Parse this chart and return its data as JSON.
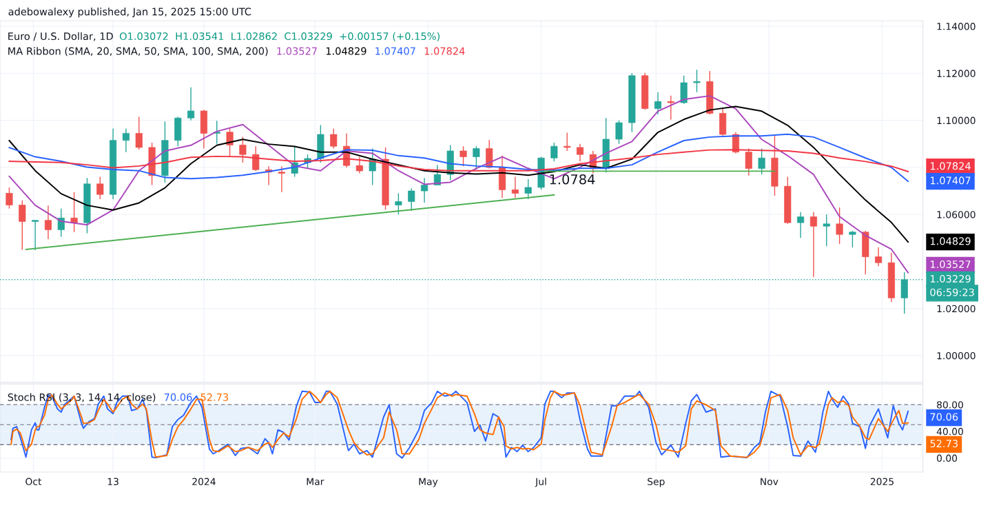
{
  "chart_data": [
    {
      "type": "candlestick",
      "title": "Euro / U.S. Dollar, 1D",
      "annotations": [
        "adebowalexy published, Jan 15, 2025 15:00 UTC",
        "O1.03072  H1.03541  L1.02862  C1.03229  +0.00157 (+0.15%)",
        "MA Ribbon (SMA, 20, SMA, 50, SMA, 100, SMA, 200)",
        "06:59:23",
        {
          "text": "1.0784",
          "x": "2024-07-03",
          "y": 1.0784
        },
        {
          "text": "1.03527",
          "x": "2025-01-15",
          "y": 1.03527
        },
        {
          "text": "1.04829",
          "x": "2025-01-15",
          "y": 1.04829
        },
        {
          "text": "1.07407",
          "x": "2025-01-15",
          "y": 1.07407
        },
        {
          "text": "1.07824",
          "x": "2025-01-15",
          "y": 1.07824
        }
      ],
      "x": [
        "2023-09-18",
        "2023-09-25",
        "2023-10-02",
        "2023-10-09",
        "2023-10-16",
        "2023-10-23",
        "2023-10-30",
        "2023-11-06",
        "2023-11-13",
        "2023-11-20",
        "2023-11-27",
        "2023-12-04",
        "2023-12-11",
        "2023-12-18",
        "2023-12-25",
        "2024-01-01",
        "2024-01-08",
        "2024-01-15",
        "2024-01-22",
        "2024-01-29",
        "2024-02-05",
        "2024-02-12",
        "2024-02-19",
        "2024-02-26",
        "2024-03-04",
        "2024-03-11",
        "2024-03-18",
        "2024-03-25",
        "2024-04-01",
        "2024-04-08",
        "2024-04-15",
        "2024-04-22",
        "2024-04-29",
        "2024-05-06",
        "2024-05-13",
        "2024-05-20",
        "2024-05-27",
        "2024-06-03",
        "2024-06-10",
        "2024-06-17",
        "2024-06-24",
        "2024-07-01",
        "2024-07-08",
        "2024-07-15",
        "2024-07-22",
        "2024-07-29",
        "2024-08-05",
        "2024-08-12",
        "2024-08-19",
        "2024-08-26",
        "2024-09-02",
        "2024-09-09",
        "2024-09-16",
        "2024-09-23",
        "2024-09-30",
        "2024-10-07",
        "2024-10-14",
        "2024-10-21",
        "2024-10-28",
        "2024-11-04",
        "2024-11-11",
        "2024-11-18",
        "2024-11-25",
        "2024-12-02",
        "2024-12-09",
        "2024-12-16",
        "2024-12-23",
        "2024-12-30",
        "2025-01-06",
        "2025-01-13"
      ],
      "ohlc": [
        [
          1.069,
          1.0715,
          1.0625,
          1.064
        ],
        [
          1.064,
          1.066,
          1.045,
          1.057
        ],
        [
          1.057,
          1.0575,
          1.0448,
          1.0575
        ],
        [
          1.0575,
          1.0638,
          1.0495,
          1.0535
        ],
        [
          1.0535,
          1.0625,
          1.0505,
          1.0585
        ],
        [
          1.0585,
          1.0695,
          1.0525,
          1.0565
        ],
        [
          1.0565,
          1.0755,
          1.052,
          1.073
        ],
        [
          1.073,
          1.076,
          1.0665,
          1.0685
        ],
        [
          1.0685,
          1.0965,
          1.0665,
          1.0915
        ],
        [
          1.0915,
          1.0965,
          1.0865,
          1.0945
        ],
        [
          1.0945,
          1.1015,
          1.0875,
          1.0885
        ],
        [
          1.0885,
          1.0905,
          1.0725,
          1.0765
        ],
        [
          1.0765,
          1.0995,
          1.0735,
          1.0915
        ],
        [
          1.0915,
          1.1015,
          1.089,
          1.101
        ],
        [
          1.101,
          1.114,
          1.1,
          1.104
        ],
        [
          1.104,
          1.1045,
          1.088,
          1.0945
        ],
        [
          1.0945,
          1.0998,
          1.09,
          1.095
        ],
        [
          1.095,
          1.0965,
          1.0845,
          1.0895
        ],
        [
          1.0895,
          1.093,
          1.082,
          1.0855
        ],
        [
          1.0855,
          1.089,
          1.0785,
          1.079
        ],
        [
          1.079,
          1.0805,
          1.0725,
          1.078
        ],
        [
          1.078,
          1.0805,
          1.0695,
          1.0775
        ],
        [
          1.0775,
          1.0888,
          1.076,
          1.082
        ],
        [
          1.082,
          1.0855,
          1.0795,
          1.0838
        ],
        [
          1.0838,
          1.098,
          1.082,
          1.094
        ],
        [
          1.094,
          1.0965,
          1.088,
          1.089
        ],
        [
          1.089,
          1.0945,
          1.08,
          1.0808
        ],
        [
          1.0808,
          1.0845,
          1.0775,
          1.0785
        ],
        [
          1.0785,
          1.088,
          1.0725,
          1.0835
        ],
        [
          1.0835,
          1.0885,
          1.062,
          1.064
        ],
        [
          1.064,
          1.069,
          1.06,
          1.0655
        ],
        [
          1.0655,
          1.0711,
          1.0615,
          1.07
        ],
        [
          1.07,
          1.0755,
          1.065,
          1.0725
        ],
        [
          1.0725,
          1.081,
          1.0725,
          1.077
        ],
        [
          1.077,
          1.0895,
          1.0745,
          1.087
        ],
        [
          1.087,
          1.089,
          1.0805,
          1.0845
        ],
        [
          1.0845,
          1.089,
          1.079,
          1.088
        ],
        [
          1.088,
          1.0917,
          1.0795,
          1.08
        ],
        [
          1.08,
          1.085,
          1.067,
          1.0705
        ],
        [
          1.0705,
          1.076,
          1.067,
          1.069
        ],
        [
          1.069,
          1.075,
          1.0665,
          1.0715
        ],
        [
          1.0715,
          1.0845,
          1.0705,
          1.084
        ],
        [
          1.084,
          1.0905,
          1.0825,
          1.089
        ],
        [
          1.089,
          1.0948,
          1.087,
          1.0885
        ],
        [
          1.0885,
          1.09,
          1.0825,
          1.0855
        ],
        [
          1.0855,
          1.087,
          1.0775,
          1.0795
        ],
        [
          1.0795,
          1.101,
          1.0778,
          1.092
        ],
        [
          1.092,
          1.1,
          1.09,
          1.099
        ],
        [
          1.099,
          1.12,
          1.095,
          1.119
        ],
        [
          1.119,
          1.1202,
          1.1045,
          1.105
        ],
        [
          1.105,
          1.112,
          1.1025,
          1.108
        ],
        [
          1.108,
          1.1105,
          1.1003,
          1.1075
        ],
        [
          1.1075,
          1.119,
          1.107,
          1.116
        ],
        [
          1.116,
          1.1215,
          1.112,
          1.1165
        ],
        [
          1.1165,
          1.121,
          1.1025,
          1.103
        ],
        [
          1.103,
          1.105,
          1.0935,
          1.094
        ],
        [
          1.094,
          1.095,
          1.086,
          1.0865
        ],
        [
          1.0865,
          1.088,
          1.0765,
          1.0795
        ],
        [
          1.0795,
          1.088,
          1.077,
          1.084
        ],
        [
          1.084,
          1.0937,
          1.068,
          1.072
        ],
        [
          1.072,
          1.076,
          1.056,
          1.0565
        ],
        [
          1.0565,
          1.061,
          1.05,
          1.059
        ],
        [
          1.059,
          1.061,
          1.0335,
          1.055
        ],
        [
          1.055,
          1.06,
          1.0465,
          1.056
        ],
        [
          1.056,
          1.063,
          1.0475,
          1.0515
        ],
        [
          1.0515,
          1.053,
          1.046,
          1.0525
        ],
        [
          1.0525,
          1.053,
          1.0345,
          1.042
        ],
        [
          1.042,
          1.046,
          1.038,
          1.0395
        ],
        [
          1.0395,
          1.0437,
          1.0228,
          1.0245
        ],
        [
          1.0245,
          1.03541,
          1.0178,
          1.03229
        ]
      ],
      "colors": [
        "#ef5350",
        "#ef5350",
        "#26a69a",
        "#ef5350",
        "#26a69a",
        "#ef5350",
        "#26a69a",
        "#ef5350",
        "#26a69a",
        "#26a69a",
        "#ef5350",
        "#ef5350",
        "#26a69a",
        "#26a69a",
        "#26a69a",
        "#ef5350",
        "#26a69a",
        "#ef5350",
        "#ef5350",
        "#ef5350",
        "#ef5350",
        "#ef5350",
        "#26a69a",
        "#26a69a",
        "#26a69a",
        "#ef5350",
        "#ef5350",
        "#ef5350",
        "#26a69a",
        "#ef5350",
        "#26a69a",
        "#26a69a",
        "#26a69a",
        "#26a69a",
        "#26a69a",
        "#ef5350",
        "#26a69a",
        "#ef5350",
        "#ef5350",
        "#ef5350",
        "#26a69a",
        "#26a69a",
        "#26a69a",
        "#ef5350",
        "#ef5350",
        "#ef5350",
        "#26a69a",
        "#26a69a",
        "#26a69a",
        "#ef5350",
        "#26a69a",
        "#ef5350",
        "#26a69a",
        "#26a69a",
        "#ef5350",
        "#ef5350",
        "#ef5350",
        "#ef5350",
        "#26a69a",
        "#ef5350",
        "#ef5350",
        "#26a69a",
        "#ef5350",
        "#26a69a",
        "#ef5350",
        "#26a69a",
        "#ef5350",
        "#ef5350",
        "#ef5350",
        "#26a69a"
      ],
      "series": [
        {
          "type": "line",
          "color": "#ab47bc",
          "x": [
            "2023-09-18",
            "2023-10-02",
            "2023-10-16",
            "2023-10-30",
            "2023-11-13",
            "2023-11-27",
            "2023-12-11",
            "2023-12-25",
            "2024-01-08",
            "2024-01-22",
            "2024-02-05",
            "2024-02-19",
            "2024-03-04",
            "2024-03-18",
            "2024-04-01",
            "2024-04-15",
            "2024-04-29",
            "2024-05-13",
            "2024-05-27",
            "2024-06-10",
            "2024-06-24",
            "2024-07-08",
            "2024-07-22",
            "2024-08-05",
            "2024-08-19",
            "2024-09-02",
            "2024-09-16",
            "2024-09-30",
            "2024-10-14",
            "2024-10-28",
            "2024-11-11",
            "2024-11-25",
            "2024-12-09",
            "2024-12-23",
            "2025-01-06",
            "2025-01-15"
          ],
          "values": [
            1.0762,
            1.0639,
            1.0571,
            1.0556,
            1.0619,
            1.0786,
            1.087,
            1.0894,
            1.0953,
            1.0982,
            1.0894,
            1.0806,
            1.0786,
            1.087,
            1.086,
            1.0786,
            1.0728,
            1.0737,
            1.0796,
            1.0845,
            1.0796,
            1.0752,
            1.0801,
            1.086,
            1.091,
            1.1039,
            1.1089,
            1.1104,
            1.1049,
            1.0919,
            1.085,
            1.077,
            1.0591,
            1.0511,
            1.0452,
            1.03527
          ]
        },
        {
          "type": "line",
          "color": "#000000",
          "x": [
            "2023-09-18",
            "2023-10-02",
            "2023-10-16",
            "2023-10-30",
            "2023-11-13",
            "2023-11-27",
            "2023-12-11",
            "2023-12-25",
            "2024-01-08",
            "2024-01-22",
            "2024-02-05",
            "2024-02-19",
            "2024-03-04",
            "2024-03-18",
            "2024-04-01",
            "2024-04-15",
            "2024-04-29",
            "2024-05-13",
            "2024-05-27",
            "2024-06-10",
            "2024-06-24",
            "2024-07-08",
            "2024-07-22",
            "2024-08-05",
            "2024-08-19",
            "2024-09-02",
            "2024-09-16",
            "2024-09-30",
            "2024-10-14",
            "2024-10-28",
            "2024-11-11",
            "2024-11-25",
            "2024-12-09",
            "2024-12-23",
            "2025-01-06",
            "2025-01-15"
          ],
          "values": [
            1.0914,
            1.0786,
            1.0688,
            1.0639,
            1.0619,
            1.0649,
            1.0713,
            1.0816,
            1.0894,
            1.0919,
            1.0899,
            1.0889,
            1.0865,
            1.0865,
            1.0835,
            1.0811,
            1.0786,
            1.0777,
            1.0772,
            1.0777,
            1.0767,
            1.0782,
            1.0811,
            1.0796,
            1.0835,
            1.0949,
            1.1004,
            1.1044,
            1.1059,
            1.1039,
            1.0979,
            1.0885,
            1.077,
            1.0661,
            1.0566,
            1.04829
          ]
        },
        {
          "type": "line",
          "color": "#2962ff",
          "x": [
            "2023-09-18",
            "2023-10-02",
            "2023-10-16",
            "2023-10-30",
            "2023-11-13",
            "2023-11-27",
            "2023-12-11",
            "2023-12-25",
            "2024-01-08",
            "2024-01-22",
            "2024-02-05",
            "2024-02-19",
            "2024-03-04",
            "2024-03-18",
            "2024-04-01",
            "2024-04-15",
            "2024-04-29",
            "2024-05-13",
            "2024-05-27",
            "2024-06-10",
            "2024-06-24",
            "2024-07-08",
            "2024-07-22",
            "2024-08-05",
            "2024-08-19",
            "2024-09-02",
            "2024-09-16",
            "2024-09-30",
            "2024-10-14",
            "2024-10-28",
            "2024-11-11",
            "2024-11-25",
            "2024-12-09",
            "2024-12-23",
            "2025-01-06",
            "2025-01-15"
          ],
          "values": [
            1.0884,
            1.0845,
            1.0826,
            1.0801,
            1.0791,
            1.0786,
            1.0757,
            1.0752,
            1.0757,
            1.0767,
            1.0782,
            1.0801,
            1.084,
            1.0875,
            1.0873,
            1.085,
            1.084,
            1.0816,
            1.0806,
            1.0801,
            1.0791,
            1.0788,
            1.0796,
            1.0796,
            1.0811,
            1.0865,
            1.0914,
            1.0929,
            1.0934,
            1.0934,
            1.0941,
            1.0929,
            1.0885,
            1.084,
            1.08,
            1.07407
          ]
        },
        {
          "type": "line",
          "color": "#f23645",
          "x": [
            "2023-09-18",
            "2023-10-02",
            "2023-10-16",
            "2023-10-30",
            "2023-11-13",
            "2023-11-27",
            "2023-12-11",
            "2023-12-25",
            "2024-01-08",
            "2024-01-22",
            "2024-02-05",
            "2024-02-19",
            "2024-03-04",
            "2024-03-18",
            "2024-04-01",
            "2024-04-15",
            "2024-04-29",
            "2024-05-13",
            "2024-05-27",
            "2024-06-10",
            "2024-06-24",
            "2024-07-08",
            "2024-07-22",
            "2024-08-05",
            "2024-08-19",
            "2024-09-02",
            "2024-09-16",
            "2024-09-30",
            "2024-10-14",
            "2024-10-28",
            "2024-11-11",
            "2024-11-25",
            "2024-12-09",
            "2024-12-23",
            "2025-01-06",
            "2025-01-15"
          ],
          "values": [
            1.0826,
            1.0823,
            1.0821,
            1.0811,
            1.0798,
            1.0806,
            1.0821,
            1.0843,
            1.0847,
            1.0845,
            1.0835,
            1.0826,
            1.0829,
            1.0837,
            1.0826,
            1.0806,
            1.0791,
            1.0786,
            1.0786,
            1.0786,
            1.0786,
            1.0794,
            1.0816,
            1.0828,
            1.084,
            1.0855,
            1.0865,
            1.0874,
            1.0875,
            1.0872,
            1.087,
            1.086,
            1.084,
            1.0825,
            1.0805,
            1.07824
          ]
        },
        {
          "type": "line",
          "color": "#4caf50",
          "x": [
            "2023-09-27",
            "2024-07-08"
          ],
          "values": [
            1.0451,
            1.0683
          ]
        },
        {
          "type": "line",
          "color": "#4caf50",
          "x": [
            "2024-07-03",
            "2024-11-04"
          ],
          "values": [
            1.0784,
            1.0784
          ]
        }
      ],
      "ref_lines": [
        {
          "axis": "y",
          "value": 1.03229,
          "label": "1.03229",
          "color": "#26a69a",
          "line_style": "dotted"
        }
      ],
      "xlim": [
        "2023-09-13",
        "2025-01-23"
      ],
      "ylim": [
        0.9886,
        1.1423
      ],
      "xticks": [
        {
          "value": "2023-10-01",
          "label": null
        },
        {
          "value": "2023-11-13",
          "label": null
        },
        {
          "value": "2024-01-01",
          "label": null
        },
        {
          "value": "2024-03-01",
          "label": null
        },
        {
          "value": "2024-05-01",
          "label": null
        },
        {
          "value": "2024-07-01",
          "label": null
        },
        {
          "value": "2024-09-01",
          "label": null
        },
        {
          "value": "2024-11-01",
          "label": null
        },
        {
          "value": "2025-01-01",
          "label": null
        }
      ],
      "yticks": [
        {
          "value": 1.0,
          "label": "1.00000"
        },
        {
          "value": 1.02,
          "label": "1.02000"
        },
        {
          "value": 1.06,
          "label": "1.06000"
        },
        {
          "value": 1.08,
          "label": null
        },
        {
          "value": 1.1,
          "label": "1.10000"
        },
        {
          "value": 1.12,
          "label": "1.12000"
        },
        {
          "value": 1.14,
          "label": "1.14000"
        }
      ],
      "tick_labels": "y",
      "grid": true
    },
    {
      "type": "line",
      "title": "Stoch RSI (3, 3, 14, 14, close)",
      "annotations": [
        {
          "text": "70.06",
          "x": "2025-01-15",
          "y": 70.06
        },
        {
          "text": "52.73",
          "x": "2025-01-15",
          "y": 52.73
        }
      ],
      "x": [
        "2023-09-19",
        "2023-09-20",
        "2023-09-22",
        "2023-09-24",
        "2023-09-27",
        "2023-09-30",
        "2023-10-02",
        "2023-10-03",
        "2023-10-04",
        "2023-10-07",
        "2023-10-09",
        "2023-10-11",
        "2023-10-14",
        "2023-10-16",
        "2023-10-18",
        "2023-10-22",
        "2023-10-23",
        "2023-10-27",
        "2023-10-28",
        "2023-10-31",
        "2023-11-03",
        "2023-11-05",
        "2023-11-08",
        "2023-11-10",
        "2023-11-13",
        "2023-11-15",
        "2023-11-18",
        "2023-11-21",
        "2023-11-23",
        "2023-11-26",
        "2023-11-29",
        "2023-12-01",
        "2023-12-04",
        "2023-12-06",
        "2023-12-12",
        "2023-12-15",
        "2023-12-18",
        "2023-12-21",
        "2023-12-25",
        "2023-12-28",
        "2023-12-31",
        "2024-01-04",
        "2024-01-06",
        "2024-01-09",
        "2024-01-14",
        "2024-01-18",
        "2024-01-21",
        "2024-01-25",
        "2024-01-30",
        "2024-02-03",
        "2024-02-05",
        "2024-02-07",
        "2024-02-10",
        "2024-02-13",
        "2024-02-16",
        "2024-02-20",
        "2024-02-23",
        "2024-02-27",
        "2024-03-01",
        "2024-03-04",
        "2024-03-07",
        "2024-03-09",
        "2024-03-13",
        "2024-03-19",
        "2024-03-22",
        "2024-03-25",
        "2024-03-29",
        "2024-04-01",
        "2024-04-07",
        "2024-04-10",
        "2024-04-14",
        "2024-04-17",
        "2024-04-21",
        "2024-04-26",
        "2024-04-29",
        "2024-05-03",
        "2024-05-06",
        "2024-05-10",
        "2024-05-14",
        "2024-05-16",
        "2024-05-22",
        "2024-05-26",
        "2024-05-29",
        "2024-06-01",
        "2024-06-05",
        "2024-06-08",
        "2024-06-11",
        "2024-06-12",
        "2024-06-15",
        "2024-06-18",
        "2024-06-21",
        "2024-06-24",
        "2024-06-27",
        "2024-07-01",
        "2024-07-03",
        "2024-07-06",
        "2024-07-08",
        "2024-07-12",
        "2024-07-15",
        "2024-07-19",
        "2024-07-22",
        "2024-07-26",
        "2024-07-28",
        "2024-08-03",
        "2024-08-08",
        "2024-08-11",
        "2024-08-15",
        "2024-08-21",
        "2024-08-23",
        "2024-08-28",
        "2024-09-01",
        "2024-09-04",
        "2024-09-09",
        "2024-09-13",
        "2024-09-17",
        "2024-09-20",
        "2024-09-23",
        "2024-09-28",
        "2024-10-03",
        "2024-10-06",
        "2024-10-11",
        "2024-10-20",
        "2024-10-24",
        "2024-10-27",
        "2024-10-30",
        "2024-11-02",
        "2024-11-07",
        "2024-11-11",
        "2024-11-14",
        "2024-11-18",
        "2024-11-22",
        "2024-11-26",
        "2024-11-28",
        "2024-11-30",
        "2024-12-03",
        "2024-12-05",
        "2024-12-08",
        "2024-12-11",
        "2024-12-14",
        "2024-12-16",
        "2024-12-20",
        "2024-12-23",
        "2024-12-25",
        "2024-12-30",
        "2025-01-04",
        "2025-01-07",
        "2025-01-10",
        "2025-01-12",
        "2025-01-15"
      ],
      "series": [
        {
          "color": "#2962ff",
          "values": [
            27.9,
            44.7,
            47.1,
            30.3,
            1.4,
            42.3,
            52.9,
            42.3,
            42.3,
            76,
            94.3,
            92.8,
            73.6,
            68.8,
            80.8,
            90.4,
            92.8,
            51.9,
            44.7,
            54.4,
            59.2,
            80.8,
            92.8,
            73.6,
            66.4,
            83.2,
            92.8,
            92.8,
            71.2,
            73.6,
            88,
            71.2,
            1.4,
            0.5,
            4.8,
            47.1,
            57.7,
            64,
            83.2,
            92.8,
            76,
            13.5,
            6.3,
            11.1,
            20.7,
            3.8,
            14.4,
            15.9,
            6.3,
            28.9,
            23.1,
            6.3,
            42.3,
            38.5,
            26.9,
            78.4,
            100,
            99,
            83.2,
            83.2,
            100,
            100,
            80.8,
            11.1,
            20.7,
            6.3,
            11.1,
            1.4,
            61.6,
            79.8,
            6.3,
            0,
            15.9,
            42.3,
            71.2,
            83.2,
            100,
            92.8,
            95.2,
            100,
            83.2,
            39.9,
            49.5,
            25.5,
            66.4,
            61.6,
            25.5,
            1.4,
            15.9,
            9.6,
            19.2,
            9.6,
            15.9,
            30.3,
            80.8,
            100,
            100,
            90.4,
            97.6,
            97.6,
            56.8,
            13.5,
            2.9,
            2.9,
            78.4,
            78.4,
            92.8,
            92.8,
            100,
            76,
            23.1,
            4.8,
            19.2,
            1.4,
            51.9,
            85.6,
            95.2,
            68.8,
            73.6,
            1.4,
            2.9,
            0.5,
            15.9,
            23.1,
            68.8,
            100,
            92.8,
            47.1,
            3.8,
            2.9,
            25.5,
            8.7,
            35.1,
            68.8,
            100,
            88,
            76,
            92.8,
            80.8,
            51.9,
            47.1,
            14.4,
            47.1,
            73.6,
            30.3,
            78.4,
            51.9,
            42.3,
            70.06
          ]
        },
        {
          "color": "#ff6d00",
          "values": [
            20.7,
            40,
            43.3,
            37.5,
            11,
            20.7,
            42.3,
            47,
            47,
            64,
            88,
            94.3,
            80.8,
            73.6,
            78.4,
            88,
            92.8,
            61.6,
            51.9,
            52.9,
            57.7,
            71.2,
            88,
            80.8,
            68.8,
            76,
            88,
            92.8,
            80.8,
            73.6,
            80.8,
            73.6,
            25.5,
            1.4,
            3.8,
            27.9,
            47.1,
            56.8,
            73.6,
            88,
            88,
            27.9,
            11.1,
            9.6,
            18.3,
            9.6,
            11.1,
            15.9,
            11.1,
            20.7,
            23.1,
            15.9,
            27.9,
            37.5,
            31.7,
            59.2,
            88,
            100,
            92.8,
            83.2,
            95.2,
            100,
            90.4,
            42.3,
            23.1,
            13.5,
            4.8,
            6.3,
            30.3,
            68.8,
            42.3,
            6.3,
            6.3,
            27.9,
            51.9,
            73.6,
            90.4,
            97.6,
            92.8,
            95.2,
            92.8,
            66.4,
            42.3,
            37.5,
            35.1,
            61.6,
            47.1,
            18.3,
            13.5,
            15.9,
            13.5,
            14.4,
            12.5,
            20.7,
            56.8,
            90.4,
            100,
            94.3,
            95.2,
            97.6,
            78.4,
            30.3,
            8.7,
            4.8,
            47.1,
            78.4,
            83.2,
            92.8,
            95.2,
            80.8,
            49.5,
            13.5,
            11.1,
            8.7,
            18.3,
            73.6,
            85.6,
            79.8,
            71.2,
            18.3,
            2.9,
            1,
            8.7,
            18.3,
            47.1,
            90.4,
            95.2,
            71.2,
            30.3,
            4.8,
            18.3,
            15.9,
            20.7,
            42.3,
            80.8,
            90.4,
            83.2,
            85.6,
            78.4,
            61.6,
            47.1,
            30.3,
            27.9,
            59.2,
            39.9,
            56.8,
            71.2,
            51.9,
            52.73
          ]
        }
      ],
      "bands": [
        {
          "axis": "y",
          "from": 20,
          "to": 80,
          "color": "#e8f2fd"
        }
      ],
      "ref_lines": [
        {
          "axis": "y",
          "value": 80,
          "color": "#787b86",
          "line_style": "dashed"
        },
        {
          "axis": "y",
          "value": 50,
          "color": "#9598a1",
          "line_style": "dashed"
        },
        {
          "axis": "y",
          "value": 20,
          "color": "#787b86",
          "line_style": "dashed"
        }
      ],
      "xlim": [
        "2023-09-13",
        "2025-01-23"
      ],
      "ylim": [
        -21,
        111
      ],
      "xticks": [
        {
          "value": "2023-10-01",
          "label": "Oct"
        },
        {
          "value": "2023-11-13",
          "label": "13"
        },
        {
          "value": "2024-01-01",
          "label": "2024"
        },
        {
          "value": "2024-03-01",
          "label": "Mar"
        },
        {
          "value": "2024-05-01",
          "label": "May"
        },
        {
          "value": "2024-07-01",
          "label": "Jul"
        },
        {
          "value": "2024-09-01",
          "label": "Sep"
        },
        {
          "value": "2024-11-01",
          "label": "Nov"
        },
        {
          "value": "2025-01-01",
          "label": "2025"
        }
      ],
      "yticks": [
        {
          "value": 0,
          "label": "0.00"
        },
        {
          "value": 40,
          "label": "40.00"
        },
        {
          "value": 80,
          "label": "80.00"
        }
      ],
      "grid": true
    }
  ]
}
